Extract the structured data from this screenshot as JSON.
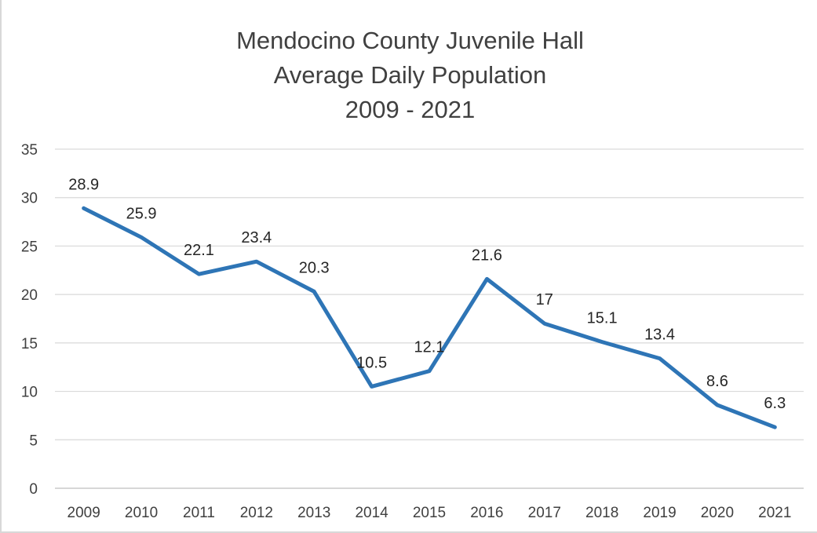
{
  "chart_data": {
    "type": "line",
    "title_lines": [
      "Mendocino County Juvenile Hall",
      "Average Daily Population",
      "2009 - 2021"
    ],
    "categories": [
      "2009",
      "2010",
      "2011",
      "2012",
      "2013",
      "2014",
      "2015",
      "2016",
      "2017",
      "2018",
      "2019",
      "2020",
      "2021"
    ],
    "series": [
      {
        "values": [
          28.9,
          25.9,
          22.1,
          23.4,
          20.3,
          10.5,
          12.1,
          21.6,
          17,
          15.1,
          13.4,
          8.6,
          6.3
        ],
        "labels": [
          "28.9",
          "25.9",
          "22.1",
          "23.4",
          "20.3",
          "10.5",
          "12.1",
          "21.6",
          "17",
          "15.1",
          "13.4",
          "8.6",
          "6.3"
        ]
      }
    ],
    "ylim": [
      0,
      35
    ],
    "yticks": [
      "0",
      "5",
      "10",
      "15",
      "20",
      "25",
      "30",
      "35"
    ],
    "grid": true,
    "legend": "none",
    "line_color": "#2e75b6",
    "grid_color": "#d9d9d9"
  }
}
